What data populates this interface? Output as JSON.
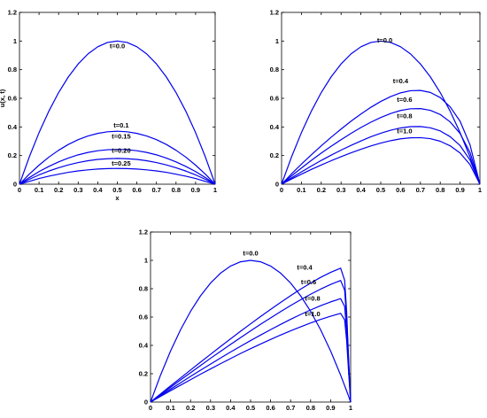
{
  "chart_data": [
    {
      "type": "line",
      "title": "",
      "xlabel": "x",
      "ylabel": "u(x, t)",
      "xlim": [
        0,
        1
      ],
      "ylim": [
        0,
        1.2
      ],
      "x_ticks": [
        "0",
        "0.1",
        "0.2",
        "0.3",
        "0.4",
        "0.5",
        "0.6",
        "0.7",
        "0.8",
        "0.9",
        "1"
      ],
      "y_ticks": [
        "0",
        "0.2",
        "0.4",
        "0.6",
        "0.8",
        "1",
        "1.2"
      ],
      "grid": false,
      "line_color": "#0000ee",
      "x": [
        0,
        0.05,
        0.1,
        0.15,
        0.2,
        0.25,
        0.3,
        0.35,
        0.4,
        0.45,
        0.5,
        0.55,
        0.6,
        0.65,
        0.7,
        0.75,
        0.8,
        0.85,
        0.9,
        0.95,
        1
      ],
      "series": [
        {
          "label": "t=0.0",
          "label_at": [
            0.5,
            0.95
          ],
          "values": [
            0,
            0.19,
            0.36,
            0.51,
            0.64,
            0.75,
            0.84,
            0.91,
            0.96,
            0.99,
            1.0,
            0.99,
            0.96,
            0.91,
            0.84,
            0.75,
            0.64,
            0.51,
            0.36,
            0.19,
            0
          ]
        },
        {
          "label": "t=0.1",
          "label_at": [
            0.52,
            0.395
          ],
          "values": [
            0,
            0.07,
            0.133,
            0.189,
            0.237,
            0.278,
            0.311,
            0.337,
            0.355,
            0.366,
            0.37,
            0.366,
            0.355,
            0.337,
            0.311,
            0.278,
            0.237,
            0.189,
            0.133,
            0.07,
            0
          ]
        },
        {
          "label": "t=0.15",
          "label_at": [
            0.52,
            0.32
          ],
          "values": [
            0,
            0.046,
            0.088,
            0.124,
            0.156,
            0.183,
            0.205,
            0.222,
            0.234,
            0.241,
            0.243,
            0.241,
            0.234,
            0.222,
            0.205,
            0.183,
            0.156,
            0.124,
            0.088,
            0.046,
            0
          ]
        },
        {
          "label": "t=0.20",
          "label_at": [
            0.52,
            0.22
          ],
          "values": [
            0,
            0.034,
            0.065,
            0.092,
            0.115,
            0.135,
            0.151,
            0.164,
            0.173,
            0.178,
            0.18,
            0.178,
            0.173,
            0.164,
            0.151,
            0.135,
            0.115,
            0.092,
            0.065,
            0.034,
            0
          ]
        },
        {
          "label": "t=0.25",
          "label_at": [
            0.52,
            0.13
          ],
          "values": [
            0,
            0.02,
            0.04,
            0.056,
            0.07,
            0.083,
            0.093,
            0.1,
            0.106,
            0.109,
            0.11,
            0.109,
            0.106,
            0.1,
            0.093,
            0.083,
            0.07,
            0.056,
            0.04,
            0.02,
            0
          ]
        }
      ]
    },
    {
      "type": "line",
      "title": "",
      "xlabel": "",
      "ylabel": "",
      "xlim": [
        0,
        1
      ],
      "ylim": [
        0,
        1.2
      ],
      "x_ticks": [
        "0",
        "0.1",
        "0.2",
        "0.3",
        "0.4",
        "0.5",
        "0.6",
        "0.7",
        "0.8",
        "0.9",
        "1"
      ],
      "y_ticks": [
        "0",
        "0.2",
        "0.4",
        "0.6",
        "0.8",
        "1",
        "1.2"
      ],
      "grid": false,
      "line_color": "#0000ee",
      "x": [
        0,
        0.05,
        0.1,
        0.15,
        0.2,
        0.25,
        0.3,
        0.35,
        0.4,
        0.45,
        0.5,
        0.55,
        0.6,
        0.65,
        0.7,
        0.75,
        0.8,
        0.85,
        0.9,
        0.95,
        1
      ],
      "series": [
        {
          "label": "t=0.0",
          "label_at": [
            0.52,
            0.99
          ],
          "values": [
            0,
            0.19,
            0.36,
            0.51,
            0.64,
            0.75,
            0.84,
            0.91,
            0.96,
            0.99,
            1.0,
            0.99,
            0.96,
            0.91,
            0.84,
            0.75,
            0.64,
            0.51,
            0.36,
            0.19,
            0
          ]
        },
        {
          "label": "t=0.4",
          "label_at": [
            0.6,
            0.705
          ],
          "values": [
            0,
            0.072,
            0.14,
            0.205,
            0.268,
            0.328,
            0.385,
            0.44,
            0.49,
            0.537,
            0.578,
            0.612,
            0.638,
            0.653,
            0.655,
            0.641,
            0.605,
            0.54,
            0.44,
            0.275,
            0
          ]
        },
        {
          "label": "t=0.6",
          "label_at": [
            0.62,
            0.575
          ],
          "values": [
            0,
            0.058,
            0.113,
            0.166,
            0.217,
            0.265,
            0.311,
            0.355,
            0.396,
            0.433,
            0.466,
            0.494,
            0.515,
            0.527,
            0.528,
            0.516,
            0.487,
            0.435,
            0.354,
            0.222,
            0
          ]
        },
        {
          "label": "t=0.8",
          "label_at": [
            0.62,
            0.46
          ],
          "values": [
            0,
            0.044,
            0.086,
            0.127,
            0.166,
            0.203,
            0.238,
            0.271,
            0.302,
            0.331,
            0.356,
            0.377,
            0.393,
            0.402,
            0.403,
            0.394,
            0.372,
            0.332,
            0.27,
            0.169,
            0
          ]
        },
        {
          "label": "t=1.0",
          "label_at": [
            0.62,
            0.355
          ],
          "values": [
            0,
            0.036,
            0.07,
            0.103,
            0.134,
            0.164,
            0.192,
            0.219,
            0.244,
            0.267,
            0.287,
            0.304,
            0.317,
            0.324,
            0.325,
            0.318,
            0.3,
            0.268,
            0.218,
            0.137,
            0
          ]
        }
      ]
    },
    {
      "type": "line",
      "title": "",
      "xlabel": "",
      "ylabel": "",
      "xlim": [
        0,
        1
      ],
      "ylim": [
        0,
        1.2
      ],
      "x_ticks": [
        "0",
        "0.1",
        "0.2",
        "0.3",
        "0.4",
        "0.5",
        "0.6",
        "0.7",
        "0.8",
        "0.9",
        "1"
      ],
      "y_ticks": [
        "0",
        "0.2",
        "0.4",
        "0.6",
        "0.8",
        "1",
        "1.2"
      ],
      "grid": false,
      "line_color": "#0000ee",
      "x": [
        0,
        0.05,
        0.1,
        0.15,
        0.2,
        0.25,
        0.3,
        0.35,
        0.4,
        0.45,
        0.5,
        0.55,
        0.6,
        0.65,
        0.7,
        0.75,
        0.8,
        0.85,
        0.9,
        0.95,
        0.97,
        0.98,
        0.99,
        1
      ],
      "series": [
        {
          "label": "t=0.0",
          "label_at": [
            0.5,
            1.035
          ],
          "values": [
            0,
            0.19,
            0.36,
            0.51,
            0.64,
            0.75,
            0.84,
            0.91,
            0.96,
            0.99,
            1.0,
            0.99,
            0.96,
            0.91,
            0.84,
            0.75,
            0.64,
            0.51,
            0.36,
            0.19,
            0.116,
            0.078,
            0.04,
            0
          ]
        },
        {
          "label": "t=0.4",
          "label_at": [
            0.77,
            0.935
          ],
          "values": [
            0,
            0.057,
            0.114,
            0.17,
            0.226,
            0.282,
            0.337,
            0.392,
            0.446,
            0.5,
            0.552,
            0.604,
            0.654,
            0.703,
            0.751,
            0.797,
            0.84,
            0.88,
            0.915,
            0.945,
            0.86,
            0.64,
            0.3,
            0
          ]
        },
        {
          "label": "t=0.6",
          "label_at": [
            0.79,
            0.83
          ],
          "values": [
            0,
            0.052,
            0.104,
            0.156,
            0.207,
            0.258,
            0.309,
            0.358,
            0.407,
            0.455,
            0.502,
            0.549,
            0.594,
            0.638,
            0.681,
            0.722,
            0.761,
            0.797,
            0.83,
            0.858,
            0.79,
            0.59,
            0.28,
            0
          ]
        },
        {
          "label": "t=0.8",
          "label_at": [
            0.81,
            0.715
          ],
          "values": [
            0,
            0.046,
            0.091,
            0.136,
            0.181,
            0.225,
            0.268,
            0.311,
            0.353,
            0.394,
            0.434,
            0.473,
            0.511,
            0.548,
            0.584,
            0.618,
            0.65,
            0.68,
            0.707,
            0.73,
            0.675,
            0.505,
            0.245,
            0
          ]
        },
        {
          "label": "t=1.0",
          "label_at": [
            0.81,
            0.605
          ],
          "values": [
            0,
            0.04,
            0.08,
            0.119,
            0.158,
            0.197,
            0.234,
            0.271,
            0.307,
            0.343,
            0.377,
            0.41,
            0.442,
            0.473,
            0.503,
            0.531,
            0.558,
            0.583,
            0.606,
            0.626,
            0.58,
            0.435,
            0.21,
            0
          ]
        }
      ]
    }
  ]
}
